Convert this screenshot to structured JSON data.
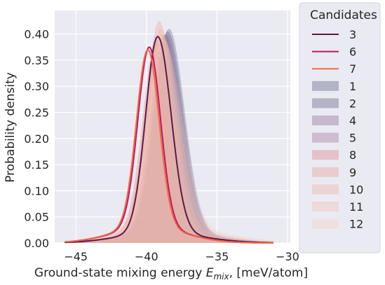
{
  "chart_data": {
    "type": "area",
    "xlabel": "Ground-state mixing energy E_mix, [meV/atom]",
    "xlabel_parts": {
      "main": "Ground-state mixing energy ",
      "var": "E",
      "sub": "mix",
      "tail": ", [meV/atom]"
    },
    "ylabel": "Probability density",
    "xlim": [
      -46.5,
      -29.8
    ],
    "ylim": [
      0,
      0.445
    ],
    "x_ticks": [
      -45,
      -40,
      -35,
      -30
    ],
    "x_tick_labels": [
      "−45",
      "−40",
      "−35",
      "−30"
    ],
    "y_ticks": [
      0.0,
      0.05,
      0.1,
      0.15,
      0.2,
      0.25,
      0.3,
      0.35,
      0.4
    ],
    "y_tick_labels": [
      "0.00",
      "0.05",
      "0.10",
      "0.15",
      "0.20",
      "0.25",
      "0.30",
      "0.35",
      "0.40"
    ],
    "grid": true,
    "legend": {
      "title": "Candidates",
      "placement": "outside-right"
    },
    "series": [
      {
        "name": "3",
        "kind": "line",
        "color": "#5c1a48",
        "peak_x": -39.2,
        "peak_y": 0.395,
        "sigma_left": 0.85,
        "sigma_right": 0.95,
        "tail_y": 0.02
      },
      {
        "name": "6",
        "kind": "line",
        "color": "#c2185b",
        "peak_x": -39.8,
        "peak_y": 0.375,
        "sigma_left": 0.8,
        "sigma_right": 0.8,
        "tail_y": 0.03
      },
      {
        "name": "7",
        "kind": "line",
        "color": "#ef6b4a",
        "peak_x": -39.9,
        "peak_y": 0.37,
        "sigma_left": 0.8,
        "sigma_right": 0.8,
        "tail_y": 0.03
      },
      {
        "name": "1",
        "kind": "fill",
        "color": "#5a5a80",
        "peak_x": -38.5,
        "peak_y": 0.405,
        "sigma_left": 1.0,
        "sigma_right": 1.1,
        "tail_y": 0.02
      },
      {
        "name": "2",
        "kind": "fill",
        "color": "#5e5a7e",
        "peak_x": -38.4,
        "peak_y": 0.41,
        "sigma_left": 1.0,
        "sigma_right": 1.1,
        "tail_y": 0.02
      },
      {
        "name": "4",
        "kind": "fill",
        "color": "#8a6a92",
        "peak_x": -38.7,
        "peak_y": 0.4,
        "sigma_left": 1.0,
        "sigma_right": 1.1,
        "tail_y": 0.02
      },
      {
        "name": "5",
        "kind": "fill",
        "color": "#a3719a",
        "peak_x": -38.6,
        "peak_y": 0.4,
        "sigma_left": 1.0,
        "sigma_right": 1.1,
        "tail_y": 0.02
      },
      {
        "name": "8",
        "kind": "fill",
        "color": "#e07f86",
        "peak_x": -39.3,
        "peak_y": 0.39,
        "sigma_left": 0.95,
        "sigma_right": 1.0,
        "tail_y": 0.02
      },
      {
        "name": "9",
        "kind": "fill",
        "color": "#eb9a8e",
        "peak_x": -39.1,
        "peak_y": 0.425,
        "sigma_left": 0.95,
        "sigma_right": 1.05,
        "tail_y": 0.02
      },
      {
        "name": "10",
        "kind": "fill",
        "color": "#efb09e",
        "peak_x": -39.0,
        "peak_y": 0.41,
        "sigma_left": 1.0,
        "sigma_right": 1.1,
        "tail_y": 0.03
      },
      {
        "name": "11",
        "kind": "fill",
        "color": "#f2c0b2",
        "peak_x": -38.9,
        "peak_y": 0.4,
        "sigma_left": 1.0,
        "sigma_right": 1.2,
        "tail_y": 0.03
      },
      {
        "name": "12",
        "kind": "fill",
        "color": "#f4cfc6",
        "peak_x": -38.8,
        "peak_y": 0.39,
        "sigma_left": 1.05,
        "sigma_right": 1.3,
        "tail_y": 0.03
      }
    ]
  }
}
